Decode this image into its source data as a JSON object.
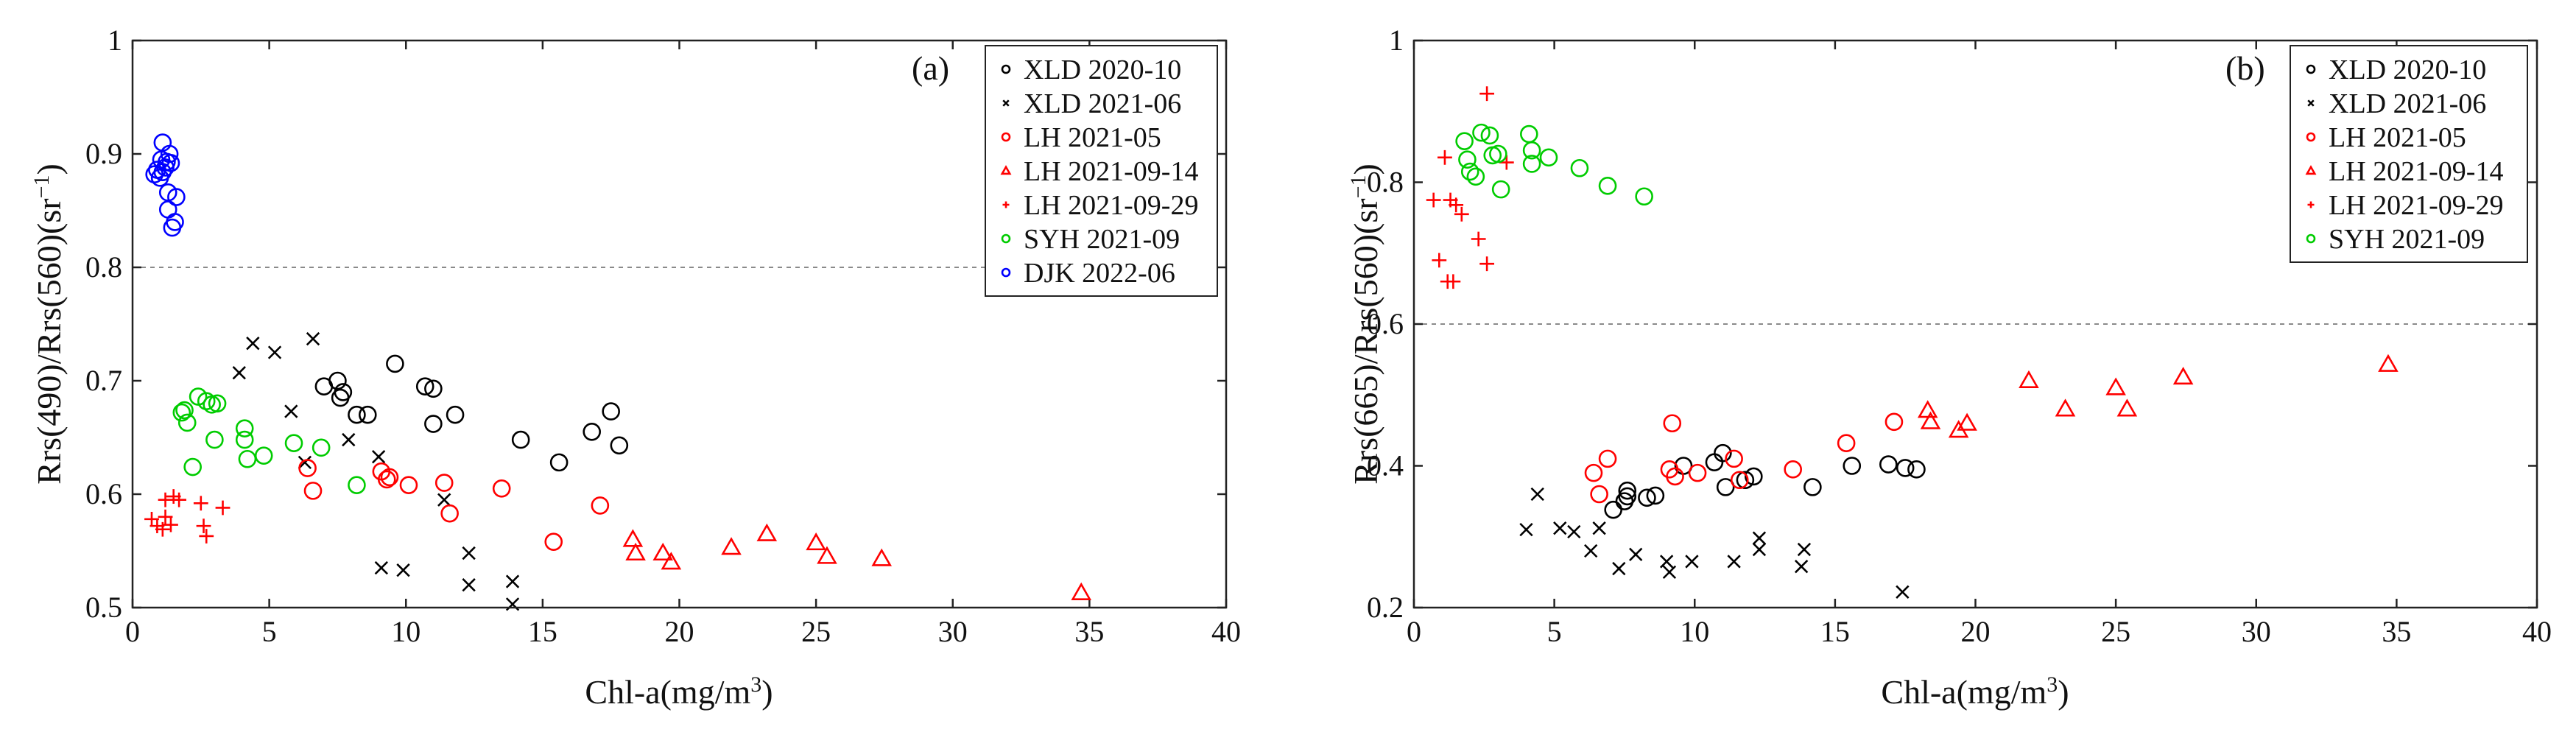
{
  "chart_data": [
    {
      "type": "scatter",
      "panel_label": "(a)",
      "xlabel": "Chl-a(mg/m",
      "xlabel_sup": "3",
      "xlabel_end": ")",
      "ylabel": "Rrs(490)/Rrs(560)(sr",
      "ylabel_sup": "−1",
      "ylabel_end": ")",
      "xlim": [
        0,
        40
      ],
      "ylim": [
        0.5,
        1.0
      ],
      "xticks": [
        0,
        5,
        10,
        15,
        20,
        25,
        30,
        35,
        40
      ],
      "yticks": [
        0.5,
        0.6,
        0.7,
        0.8,
        0.9,
        1.0
      ],
      "ytick_labels": [
        "0.5",
        "0.6",
        "0.7",
        "0.8",
        "0.9",
        "1"
      ],
      "threshold": 0.8,
      "legend_position": "top-right",
      "series": [
        {
          "name": "XLD 2020-10",
          "marker": "circle",
          "color": "#000000",
          "points": [
            [
              7.0,
              0.695
            ],
            [
              7.5,
              0.7
            ],
            [
              7.6,
              0.685
            ],
            [
              7.7,
              0.69
            ],
            [
              8.2,
              0.67
            ],
            [
              8.6,
              0.67
            ],
            [
              9.6,
              0.715
            ],
            [
              10.7,
              0.695
            ],
            [
              11.0,
              0.693
            ],
            [
              11.0,
              0.662
            ],
            [
              11.8,
              0.67
            ],
            [
              14.2,
              0.648
            ],
            [
              15.6,
              0.628
            ],
            [
              16.8,
              0.655
            ],
            [
              17.5,
              0.673
            ],
            [
              17.8,
              0.643
            ]
          ]
        },
        {
          "name": "XLD 2021-06",
          "marker": "x",
          "color": "#000000",
          "points": [
            [
              3.9,
              0.707
            ],
            [
              4.4,
              0.733
            ],
            [
              5.2,
              0.725
            ],
            [
              5.8,
              0.673
            ],
            [
              6.3,
              0.628
            ],
            [
              6.6,
              0.737
            ],
            [
              7.9,
              0.648
            ],
            [
              9.0,
              0.633
            ],
            [
              9.1,
              0.535
            ],
            [
              9.9,
              0.533
            ],
            [
              11.4,
              0.595
            ],
            [
              12.3,
              0.548
            ],
            [
              12.3,
              0.52
            ],
            [
              13.9,
              0.523
            ],
            [
              13.9,
              0.503
            ]
          ]
        },
        {
          "name": "LH 2021-05",
          "marker": "circle",
          "color": "#ff0000",
          "points": [
            [
              6.4,
              0.623
            ],
            [
              6.6,
              0.603
            ],
            [
              9.1,
              0.62
            ],
            [
              9.3,
              0.613
            ],
            [
              9.4,
              0.615
            ],
            [
              10.1,
              0.608
            ],
            [
              11.4,
              0.61
            ],
            [
              11.6,
              0.583
            ],
            [
              13.5,
              0.605
            ],
            [
              15.4,
              0.558
            ],
            [
              17.1,
              0.59
            ]
          ]
        },
        {
          "name": "LH 2021-09-14",
          "marker": "triangle",
          "color": "#ff0000",
          "points": [
            [
              18.3,
              0.56
            ],
            [
              18.4,
              0.548
            ],
            [
              19.4,
              0.548
            ],
            [
              19.7,
              0.54
            ],
            [
              21.9,
              0.553
            ],
            [
              23.2,
              0.565
            ],
            [
              25.0,
              0.557
            ],
            [
              25.4,
              0.545
            ],
            [
              27.4,
              0.543
            ],
            [
              34.7,
              0.513
            ]
          ]
        },
        {
          "name": "LH 2021-09-29",
          "marker": "plus",
          "color": "#ff0000",
          "points": [
            [
              0.7,
              0.578
            ],
            [
              0.9,
              0.572
            ],
            [
              1.1,
              0.569
            ],
            [
              1.2,
              0.595
            ],
            [
              1.2,
              0.58
            ],
            [
              1.4,
              0.573
            ],
            [
              1.5,
              0.598
            ],
            [
              1.7,
              0.595
            ],
            [
              2.5,
              0.592
            ],
            [
              2.6,
              0.572
            ],
            [
              2.7,
              0.563
            ],
            [
              3.3,
              0.588
            ]
          ]
        },
        {
          "name": "SYH 2021-09",
          "marker": "circle",
          "color": "#00cc00",
          "points": [
            [
              1.8,
              0.672
            ],
            [
              1.9,
              0.674
            ],
            [
              2.0,
              0.663
            ],
            [
              2.2,
              0.624
            ],
            [
              2.4,
              0.686
            ],
            [
              2.7,
              0.682
            ],
            [
              2.9,
              0.679
            ],
            [
              3.0,
              0.648
            ],
            [
              3.1,
              0.68
            ],
            [
              4.1,
              0.658
            ],
            [
              4.2,
              0.631
            ],
            [
              4.8,
              0.634
            ],
            [
              5.9,
              0.645
            ],
            [
              6.9,
              0.641
            ],
            [
              8.2,
              0.608
            ],
            [
              4.1,
              0.648
            ]
          ]
        },
        {
          "name": "DJK 2022-06",
          "marker": "circle",
          "color": "#0000ff",
          "points": [
            [
              0.8,
              0.882
            ],
            [
              0.9,
              0.886
            ],
            [
              1.0,
              0.879
            ],
            [
              1.05,
              0.895
            ],
            [
              1.1,
              0.91
            ],
            [
              1.1,
              0.884
            ],
            [
              1.2,
              0.888
            ],
            [
              1.25,
              0.893
            ],
            [
              1.3,
              0.866
            ],
            [
              1.3,
              0.851
            ],
            [
              1.35,
              0.9
            ],
            [
              1.4,
              0.892
            ],
            [
              1.45,
              0.835
            ],
            [
              1.55,
              0.84
            ],
            [
              1.6,
              0.862
            ]
          ]
        }
      ]
    },
    {
      "type": "scatter",
      "panel_label": "(b)",
      "xlabel": "Chl-a(mg/m",
      "xlabel_sup": "3",
      "xlabel_end": ")",
      "ylabel": "Rrs(665)/Rrs(560)(sr",
      "ylabel_sup": "−1",
      "ylabel_end": ")",
      "xlim": [
        0,
        40
      ],
      "ylim": [
        0.2,
        1.0
      ],
      "xticks": [
        0,
        5,
        10,
        15,
        20,
        25,
        30,
        35,
        40
      ],
      "yticks": [
        0.2,
        0.4,
        0.6,
        0.8,
        1.0
      ],
      "ytick_labels": [
        "0.2",
        "0.4",
        "0.6",
        "0.8",
        "1"
      ],
      "threshold": 0.6,
      "legend_position": "top-right",
      "series": [
        {
          "name": "XLD 2020-10",
          "marker": "circle",
          "color": "#000000",
          "points": [
            [
              7.1,
              0.338
            ],
            [
              7.5,
              0.35
            ],
            [
              7.6,
              0.357
            ],
            [
              7.6,
              0.365
            ],
            [
              8.3,
              0.355
            ],
            [
              8.6,
              0.358
            ],
            [
              9.6,
              0.4
            ],
            [
              10.7,
              0.405
            ],
            [
              11.0,
              0.418
            ],
            [
              11.1,
              0.37
            ],
            [
              11.8,
              0.38
            ],
            [
              12.1,
              0.385
            ],
            [
              14.2,
              0.37
            ],
            [
              15.6,
              0.4
            ],
            [
              16.9,
              0.402
            ],
            [
              17.5,
              0.397
            ],
            [
              17.9,
              0.395
            ]
          ]
        },
        {
          "name": "XLD 2021-06",
          "marker": "x",
          "color": "#000000",
          "points": [
            [
              4.0,
              0.31
            ],
            [
              4.4,
              0.36
            ],
            [
              5.2,
              0.312
            ],
            [
              5.7,
              0.307
            ],
            [
              6.3,
              0.28
            ],
            [
              6.6,
              0.312
            ],
            [
              7.3,
              0.255
            ],
            [
              7.9,
              0.275
            ],
            [
              9.0,
              0.265
            ],
            [
              9.1,
              0.25
            ],
            [
              9.9,
              0.265
            ],
            [
              11.4,
              0.265
            ],
            [
              12.3,
              0.298
            ],
            [
              12.3,
              0.282
            ],
            [
              13.8,
              0.258
            ],
            [
              13.9,
              0.282
            ],
            [
              17.4,
              0.222
            ]
          ]
        },
        {
          "name": "LH 2021-05",
          "marker": "circle",
          "color": "#ff0000",
          "points": [
            [
              6.4,
              0.39
            ],
            [
              6.6,
              0.36
            ],
            [
              6.9,
              0.41
            ],
            [
              9.1,
              0.395
            ],
            [
              9.2,
              0.46
            ],
            [
              9.3,
              0.385
            ],
            [
              10.1,
              0.39
            ],
            [
              11.4,
              0.41
            ],
            [
              11.6,
              0.38
            ],
            [
              13.5,
              0.395
            ],
            [
              15.4,
              0.432
            ],
            [
              17.1,
              0.462
            ]
          ]
        },
        {
          "name": "LH 2021-09-14",
          "marker": "triangle",
          "color": "#ff0000",
          "points": [
            [
              18.3,
              0.478
            ],
            [
              18.4,
              0.462
            ],
            [
              19.4,
              0.45
            ],
            [
              19.7,
              0.46
            ],
            [
              21.9,
              0.52
            ],
            [
              23.2,
              0.48
            ],
            [
              25.0,
              0.51
            ],
            [
              25.4,
              0.48
            ],
            [
              27.4,
              0.525
            ],
            [
              34.7,
              0.543
            ]
          ]
        },
        {
          "name": "LH 2021-09-29",
          "marker": "plus",
          "color": "#ff0000",
          "points": [
            [
              0.7,
              0.775
            ],
            [
              0.9,
              0.69
            ],
            [
              1.1,
              0.835
            ],
            [
              1.2,
              0.66
            ],
            [
              1.3,
              0.775
            ],
            [
              1.4,
              0.66
            ],
            [
              1.5,
              0.768
            ],
            [
              1.7,
              0.755
            ],
            [
              2.3,
              0.72
            ],
            [
              2.6,
              0.925
            ],
            [
              2.6,
              0.685
            ],
            [
              3.3,
              0.828
            ]
          ]
        },
        {
          "name": "SYH 2021-09",
          "marker": "circle",
          "color": "#00cc00",
          "points": [
            [
              1.8,
              0.858
            ],
            [
              1.9,
              0.832
            ],
            [
              2.0,
              0.815
            ],
            [
              2.2,
              0.808
            ],
            [
              2.4,
              0.87
            ],
            [
              2.7,
              0.866
            ],
            [
              2.8,
              0.838
            ],
            [
              3.0,
              0.84
            ],
            [
              3.1,
              0.79
            ],
            [
              4.1,
              0.868
            ],
            [
              4.2,
              0.845
            ],
            [
              4.2,
              0.826
            ],
            [
              4.8,
              0.835
            ],
            [
              5.9,
              0.82
            ],
            [
              6.9,
              0.795
            ],
            [
              8.2,
              0.78
            ]
          ]
        }
      ]
    }
  ]
}
